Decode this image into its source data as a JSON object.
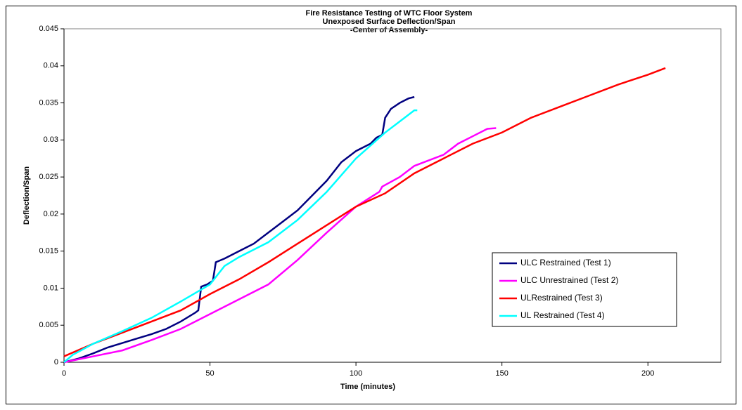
{
  "chart_data": {
    "type": "line",
    "title": [
      "Fire Resistance Testing of WTC Floor System",
      "Unexposed Surface Deflection/Span",
      "-Center of Assembly-"
    ],
    "x_label": "Time (minutes)",
    "y_label": "Deflection/Span",
    "xlim": [
      0,
      225
    ],
    "xticks": [
      0,
      50,
      100,
      150,
      200
    ],
    "ylim": [
      0,
      0.045
    ],
    "yticks": [
      0,
      0.005,
      0.01,
      0.015,
      0.02,
      0.025,
      0.03,
      0.035,
      0.04,
      0.045
    ],
    "legend": "lower right",
    "series": [
      {
        "name": "ULC Restrained (Test 1)",
        "color": "#000080",
        "x": [
          0,
          5,
          10,
          15,
          20,
          25,
          30,
          35,
          40,
          45,
          46,
          47,
          49,
          51,
          52,
          55,
          60,
          65,
          70,
          75,
          80,
          85,
          90,
          95,
          100,
          105,
          107,
          109,
          110,
          112,
          115,
          118,
          120
        ],
        "values": [
          0,
          0.0005,
          0.0012,
          0.002,
          0.0026,
          0.0032,
          0.0038,
          0.0045,
          0.0055,
          0.0067,
          0.007,
          0.0102,
          0.0105,
          0.011,
          0.0135,
          0.014,
          0.015,
          0.016,
          0.0175,
          0.019,
          0.0205,
          0.0225,
          0.0245,
          0.027,
          0.0285,
          0.0295,
          0.0303,
          0.0307,
          0.033,
          0.0342,
          0.035,
          0.0356,
          0.0358
        ]
      },
      {
        "name": "ULC Unrestrained (Test 2)",
        "color": "#ff00ff",
        "x": [
          0,
          10,
          20,
          30,
          40,
          50,
          60,
          70,
          80,
          90,
          100,
          108,
          109,
          115,
          120,
          130,
          135,
          140,
          145,
          148
        ],
        "values": [
          0,
          0.0008,
          0.0016,
          0.003,
          0.0045,
          0.0065,
          0.0085,
          0.0105,
          0.0138,
          0.0175,
          0.021,
          0.023,
          0.0237,
          0.025,
          0.0265,
          0.028,
          0.0295,
          0.0305,
          0.0315,
          0.0316
        ]
      },
      {
        "name": "ULRestrained (Test 3)",
        "color": "#ff0000",
        "x": [
          0,
          10,
          20,
          30,
          40,
          50,
          60,
          70,
          80,
          82,
          90,
          100,
          110,
          120,
          130,
          140,
          150,
          160,
          170,
          180,
          190,
          200,
          206
        ],
        "values": [
          0.0008,
          0.0025,
          0.004,
          0.0055,
          0.007,
          0.0092,
          0.0112,
          0.0135,
          0.016,
          0.0165,
          0.0185,
          0.021,
          0.0228,
          0.0255,
          0.0275,
          0.0295,
          0.031,
          0.033,
          0.0345,
          0.036,
          0.0375,
          0.0388,
          0.0397
        ]
      },
      {
        "name": "UL Restrained (Test 4)",
        "color": "#00ffff",
        "x": [
          0,
          3,
          10,
          20,
          30,
          40,
          50,
          55,
          60,
          70,
          80,
          90,
          100,
          110,
          115,
          120,
          121
        ],
        "values": [
          0,
          0.001,
          0.0025,
          0.0042,
          0.006,
          0.0082,
          0.0105,
          0.013,
          0.0142,
          0.0162,
          0.0192,
          0.023,
          0.0275,
          0.031,
          0.0325,
          0.034,
          0.034
        ]
      }
    ]
  }
}
